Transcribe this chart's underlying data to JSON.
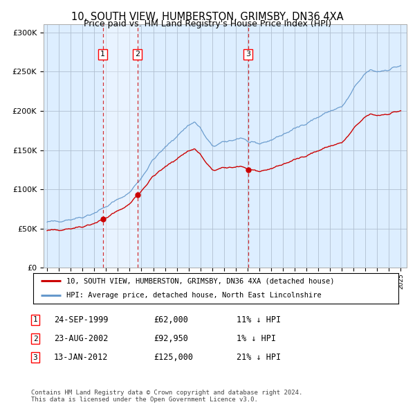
{
  "title": "10, SOUTH VIEW, HUMBERSTON, GRIMSBY, DN36 4XA",
  "subtitle": "Price paid vs. HM Land Registry's House Price Index (HPI)",
  "title_fontsize": 10.5,
  "subtitle_fontsize": 9,
  "ylim": [
    0,
    310000
  ],
  "yticks": [
    0,
    50000,
    100000,
    150000,
    200000,
    250000,
    300000
  ],
  "ytick_labels": [
    "£0",
    "£50K",
    "£100K",
    "£150K",
    "£200K",
    "£250K",
    "£300K"
  ],
  "x_start_year": 1995,
  "x_end_year": 2025,
  "red_line_color": "#cc0000",
  "blue_line_color": "#6699cc",
  "bg_color": "#ddeeff",
  "grid_color": "#b0bfd0",
  "purchase_dates": [
    1999.73,
    2002.65,
    2012.04
  ],
  "purchase_prices": [
    62000,
    92950,
    125000
  ],
  "purchase_labels": [
    "1",
    "2",
    "3"
  ],
  "shade_pairs": [
    [
      1999.73,
      2002.65
    ]
  ],
  "legend_red": "10, SOUTH VIEW, HUMBERSTON, GRIMSBY, DN36 4XA (detached house)",
  "legend_blue": "HPI: Average price, detached house, North East Lincolnshire",
  "table_rows": [
    [
      "1",
      "24-SEP-1999",
      "£62,000",
      "11% ↓ HPI"
    ],
    [
      "2",
      "23-AUG-2002",
      "£92,950",
      "1% ↓ HPI"
    ],
    [
      "3",
      "13-JAN-2012",
      "£125,000",
      "21% ↓ HPI"
    ]
  ],
  "footer": "Contains HM Land Registry data © Crown copyright and database right 2024.\nThis data is licensed under the Open Government Licence v3.0."
}
